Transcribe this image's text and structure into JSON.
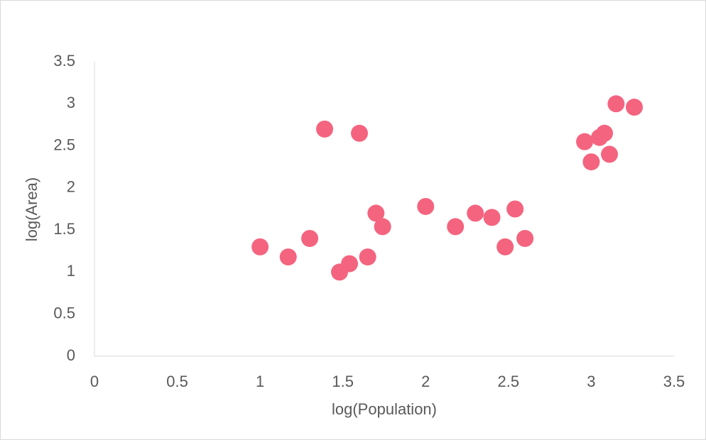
{
  "chart_data": {
    "type": "scatter",
    "x_label": "log(Population)",
    "y_label": "log(Area)",
    "x": [
      1.0,
      1.17,
      1.3,
      1.39,
      1.6,
      1.48,
      1.54,
      1.65,
      1.7,
      1.74,
      2.0,
      2.18,
      2.3,
      2.4,
      2.48,
      2.54,
      2.6,
      2.96,
      3.0,
      3.05,
      3.08,
      3.11,
      3.15,
      3.26
    ],
    "values": [
      1.3,
      1.18,
      1.4,
      2.7,
      2.65,
      1.0,
      1.1,
      1.18,
      1.7,
      1.54,
      1.78,
      1.54,
      1.7,
      1.65,
      1.3,
      1.75,
      1.4,
      2.55,
      2.31,
      2.6,
      2.65,
      2.4,
      3.0,
      2.96
    ],
    "color": "#f4647f",
    "xlim": [
      0,
      3.5
    ],
    "xticks": [
      0,
      0.5,
      1,
      1.5,
      2,
      2.5,
      3,
      3.5
    ],
    "ylim": [
      0,
      3.5
    ],
    "yticks": [
      0,
      0.5,
      1,
      1.5,
      2,
      2.5,
      3,
      3.5
    ],
    "grid": false
  }
}
